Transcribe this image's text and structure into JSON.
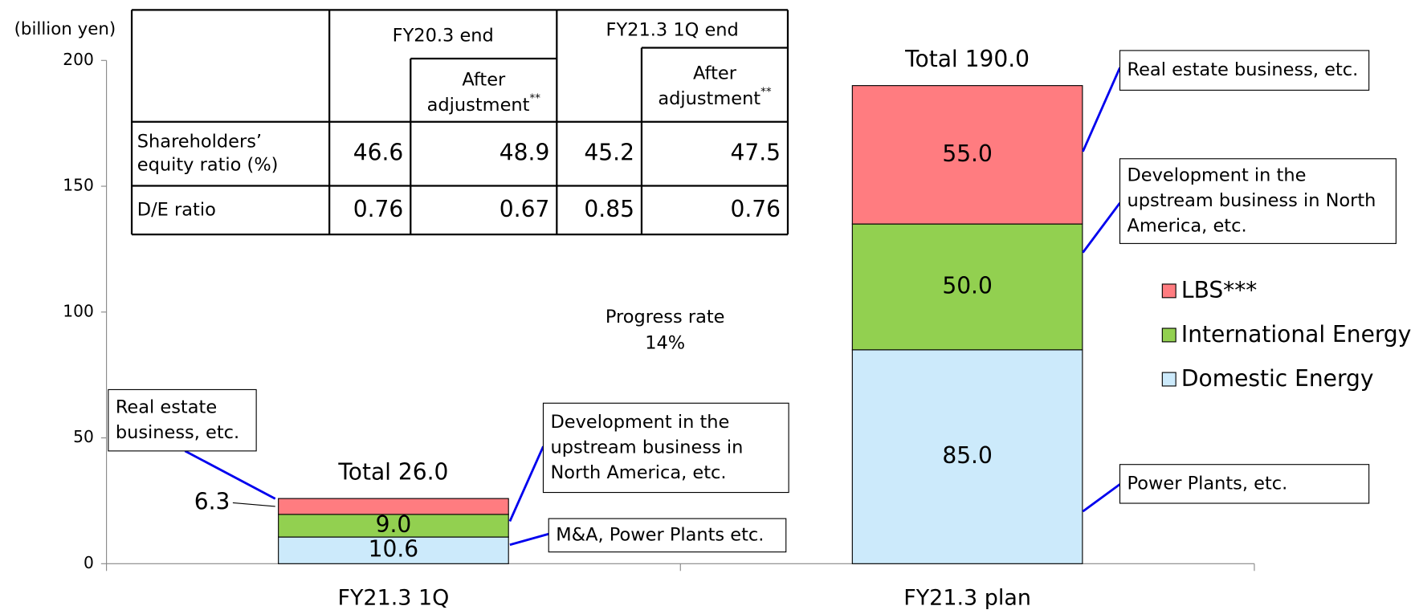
{
  "chart_data": {
    "type": "bar",
    "stacked": true,
    "y_label": "(billion yen)",
    "categories": [
      "FY21.3 1Q",
      "FY21.3 plan"
    ],
    "series": [
      {
        "name": "Domestic Energy",
        "color": "#cceafb",
        "values": [
          10.6,
          85
        ],
        "value_labels": [
          "10.6",
          "85.0"
        ]
      },
      {
        "name": "International Energy",
        "color": "#92d050",
        "values": [
          9,
          50
        ],
        "value_labels": [
          "9.0",
          "50.0"
        ]
      },
      {
        "name": "LBS***",
        "color": "#ff7c80",
        "values": [
          6.3,
          55
        ],
        "value_labels": [
          "6.3",
          "55.0"
        ]
      }
    ],
    "total_labels": [
      "Total 26.0",
      "Total 190.0"
    ],
    "ylim": [
      0,
      200
    ],
    "yticks": [
      0,
      50,
      100,
      150,
      200
    ],
    "grid": false,
    "progress": [
      "Progress rate",
      "14%"
    ],
    "callouts": [
      {
        "lines": [
          "Real estate business, etc."
        ]
      },
      {
        "lines": [
          "Development in the",
          "upstream business in North",
          "America, etc."
        ]
      },
      {
        "lines": [
          "Power Plants, etc."
        ]
      },
      {
        "lines": [
          "Real estate",
          "business, etc."
        ]
      },
      {
        "lines": [
          "Development in the",
          "upstream business in",
          "North America, etc."
        ]
      },
      {
        "lines": [
          "M&A, Power Plants etc."
        ]
      }
    ]
  },
  "table": {
    "header": {
      "fy20": "FY20.3 end",
      "fy21": "FY21.3 1Q end",
      "after": [
        "After",
        "adjustment"
      ],
      "after_mark": "**"
    },
    "rows": [
      {
        "label": [
          "Shareholders’",
          "equity ratio (%)"
        ],
        "cells": [
          "46.6",
          "48.9",
          "45.2",
          "47.5"
        ]
      },
      {
        "label": [
          "D/E ratio"
        ],
        "cells": [
          "0.76",
          "0.67",
          "0.85",
          "0.76"
        ]
      }
    ]
  }
}
